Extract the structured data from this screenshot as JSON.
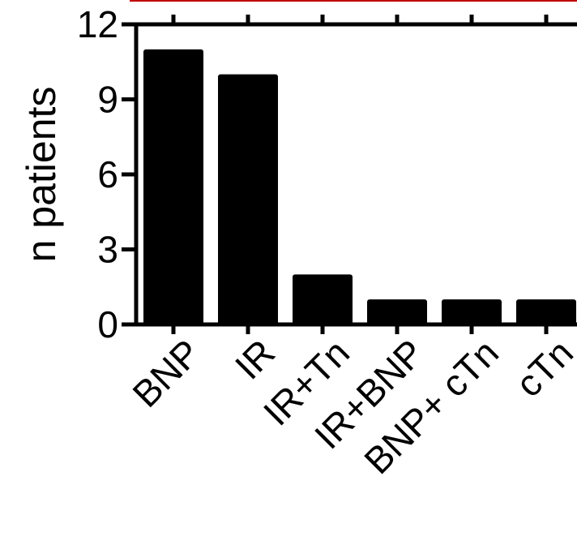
{
  "chart_data": {
    "type": "bar",
    "categories": [
      "BNP",
      "IR",
      "IR+Tn",
      "IR+BNP",
      "BNP+ cTn",
      "cTn"
    ],
    "values": [
      11,
      10,
      2,
      1,
      1,
      1
    ],
    "xlabel": "",
    "ylabel": "n patients",
    "ylim": [
      0,
      12
    ],
    "yticks": [
      "0",
      "3",
      "6",
      "9",
      "12"
    ],
    "grid": false,
    "legend": "none",
    "colors": {
      "bar": "#000000",
      "axis": "#000000",
      "top_line": "#c00000"
    }
  }
}
